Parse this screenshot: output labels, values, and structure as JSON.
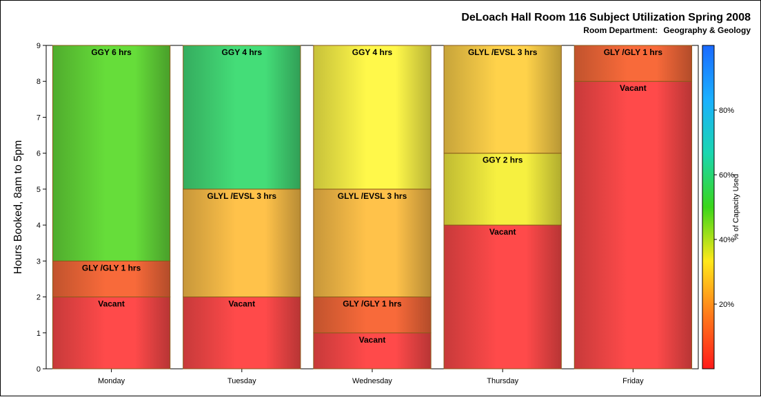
{
  "chart_data": {
    "type": "bar",
    "stacked": true,
    "title": "DeLoach Hall Room 116 Subject Utilization Spring 2008",
    "subtitle_label": "Room Department:",
    "subtitle_value": "Geography & Geology",
    "ylabel": "Hours Booked, 8am to 5pm",
    "xlabel": "",
    "ylim": [
      0,
      9
    ],
    "yticks": [
      "0",
      "1",
      "2",
      "3",
      "4",
      "5",
      "6",
      "7",
      "8",
      "9"
    ],
    "categories": [
      "Monday",
      "Tuesday",
      "Wednesday",
      "Thursday",
      "Friday"
    ],
    "segments": [
      [
        {
          "label": "Vacant",
          "hours": 2,
          "color": "#ff4a4a"
        },
        {
          "label": "GLY /GLY 1 hrs",
          "hours": 1,
          "color": "#f86a3a"
        },
        {
          "label": "GGY 6 hrs",
          "hours": 6,
          "color": "#66dd3a"
        }
      ],
      [
        {
          "label": "Vacant",
          "hours": 2,
          "color": "#ff4a4a"
        },
        {
          "label": "GLYL /EVSL 3 hrs",
          "hours": 3,
          "color": "#ffc24a"
        },
        {
          "label": "GGY 4 hrs",
          "hours": 4,
          "color": "#44dd78"
        }
      ],
      [
        {
          "label": "Vacant",
          "hours": 1,
          "color": "#ff4a4a"
        },
        {
          "label": "GLY /GLY 1 hrs",
          "hours": 1,
          "color": "#f86a3a"
        },
        {
          "label": "GLYL /EVSL 3 hrs",
          "hours": 3,
          "color": "#ffc24a"
        },
        {
          "label": "GGY 4 hrs",
          "hours": 4,
          "color": "#fff84a"
        }
      ],
      [
        {
          "label": "Vacant",
          "hours": 4,
          "color": "#ff4a4a"
        },
        {
          "label": "GGY 2 hrs",
          "hours": 2,
          "color": "#f6f040"
        },
        {
          "label": "GLYL /EVSL 3 hrs",
          "hours": 3,
          "color": "#ffd24a"
        }
      ],
      [
        {
          "label": "Vacant",
          "hours": 8,
          "color": "#ff4a4a"
        },
        {
          "label": "GLY /GLY 1 hrs",
          "hours": 1,
          "color": "#f86a3a"
        }
      ]
    ],
    "colorbar": {
      "label": "% of Capacity Used",
      "ticks": [
        {
          "value": 20,
          "label": "20%"
        },
        {
          "value": 40,
          "label": "40%"
        },
        {
          "value": 60,
          "label": "60%"
        },
        {
          "value": 80,
          "label": "80%"
        }
      ],
      "range": [
        0,
        100
      ],
      "stops": [
        "#ff1a1a",
        "#ff7a1a",
        "#ffe81a",
        "#3ad61a",
        "#1ad6b0",
        "#1ab0ff",
        "#1a6aff"
      ]
    }
  }
}
